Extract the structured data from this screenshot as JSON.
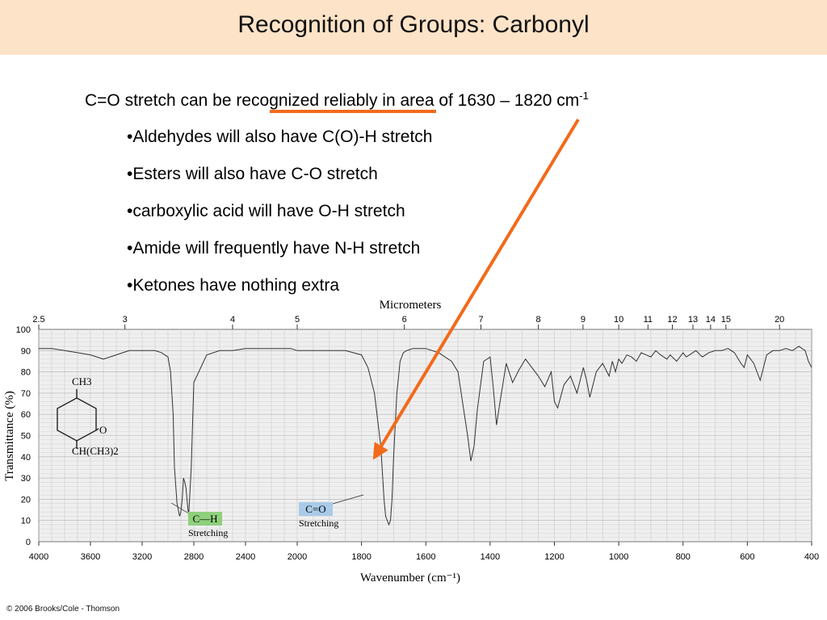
{
  "slide": {
    "title": "Recognition of Groups: Carbonyl",
    "headline_pre": "C=O stretch can be ",
    "headline_highlight": "recognized reliably",
    "headline_post": " in area of 1630 – 1820 cm",
    "headline_sup": "-1",
    "bullets": [
      "•Aldehydes will also have C(O)-H stretch",
      "•Esters will also have C-O stretch",
      "•carboxylic acid will have O-H stretch",
      "•Amide will frequently have N-H stretch",
      "•Ketones have nothing extra"
    ],
    "copyright": "© 2006 Brooks/Cole - Thomson",
    "colors": {
      "title_bg": "#fde3c8",
      "arrow": "#f26a1b",
      "ch_label_bg": "#8fd07c",
      "co_label_bg": "#a9cbe8"
    }
  },
  "chart_data": {
    "type": "line",
    "xlabel": "Wavenumber (cm⁻¹)",
    "ylabel": "Transmittance (%)",
    "top_axis_label": "Micrometers",
    "x_ticks": [
      "4000",
      "3600",
      "3200",
      "2800",
      "2400",
      "2000",
      "1800",
      "1600",
      "1400",
      "1200",
      "1000",
      "800",
      "600",
      "400"
    ],
    "y_ticks": [
      "0",
      "10",
      "20",
      "30",
      "40",
      "50",
      "60",
      "70",
      "80",
      "90",
      "100"
    ],
    "micrometer_ticks": [
      "2.5",
      "3",
      "4",
      "5",
      "6",
      "7",
      "8",
      "9",
      "10",
      "11",
      "12",
      "13",
      "14",
      "15",
      "20"
    ],
    "ylim": [
      0,
      100
    ],
    "grid": true,
    "series": [
      {
        "x": [
          4000,
          3900,
          3800,
          3700,
          3600,
          3500,
          3400,
          3350,
          3300,
          3200,
          3100,
          3050,
          3000,
          2980,
          2960,
          2950,
          2930,
          2910,
          2900,
          2890,
          2880,
          2870,
          2860,
          2850,
          2840,
          2820,
          2800,
          2700,
          2600,
          2500,
          2400,
          2300,
          2200,
          2100,
          2050,
          2000,
          1950,
          1900,
          1850,
          1800,
          1780,
          1760,
          1740,
          1730,
          1725,
          1715,
          1710,
          1705,
          1700,
          1690,
          1680,
          1670,
          1660,
          1640,
          1620,
          1600,
          1560,
          1520,
          1500,
          1480,
          1470,
          1460,
          1450,
          1440,
          1420,
          1400,
          1390,
          1380,
          1370,
          1350,
          1330,
          1310,
          1290,
          1270,
          1250,
          1230,
          1210,
          1200,
          1190,
          1170,
          1150,
          1130,
          1110,
          1100,
          1090,
          1070,
          1050,
          1030,
          1020,
          1010,
          1000,
          990,
          975,
          960,
          945,
          930,
          915,
          900,
          885,
          870,
          850,
          840,
          820,
          800,
          790,
          780,
          760,
          740,
          720,
          700,
          680,
          660,
          640,
          620,
          610,
          600,
          590,
          580,
          560,
          540,
          520,
          500,
          480,
          460,
          440,
          420,
          410,
          400
        ],
        "y": [
          91,
          91,
          90,
          89,
          88,
          86,
          88,
          89,
          90,
          90,
          90,
          89,
          87,
          80,
          60,
          35,
          18,
          12,
          14,
          20,
          30,
          28,
          25,
          18,
          12,
          35,
          75,
          88,
          90,
          90,
          91,
          91,
          91,
          91,
          91,
          90,
          90,
          90,
          90,
          88,
          82,
          70,
          45,
          20,
          12,
          8,
          10,
          20,
          40,
          70,
          85,
          89,
          90,
          91,
          91,
          91,
          89,
          85,
          80,
          60,
          50,
          38,
          45,
          62,
          85,
          87,
          72,
          55,
          65,
          84,
          75,
          81,
          86,
          82,
          78,
          73,
          80,
          66,
          63,
          74,
          78,
          70,
          82,
          76,
          68,
          80,
          84,
          78,
          85,
          80,
          86,
          84,
          88,
          87,
          85,
          89,
          88,
          87,
          90,
          88,
          86,
          88,
          85,
          89,
          87,
          88,
          90,
          87,
          89,
          90,
          90,
          91,
          89,
          84,
          82,
          88,
          86,
          84,
          76,
          88,
          90,
          90,
          91,
          90,
          92,
          90,
          85,
          82
        ]
      }
    ],
    "annotations": [
      {
        "label": "C—H",
        "sublabel": "Stretching"
      },
      {
        "label": "C=O",
        "sublabel": "Stretching"
      }
    ],
    "molecule": {
      "top_group": "CH3",
      "ring_group": "O",
      "bottom_group": "CH(CH3)2"
    }
  }
}
